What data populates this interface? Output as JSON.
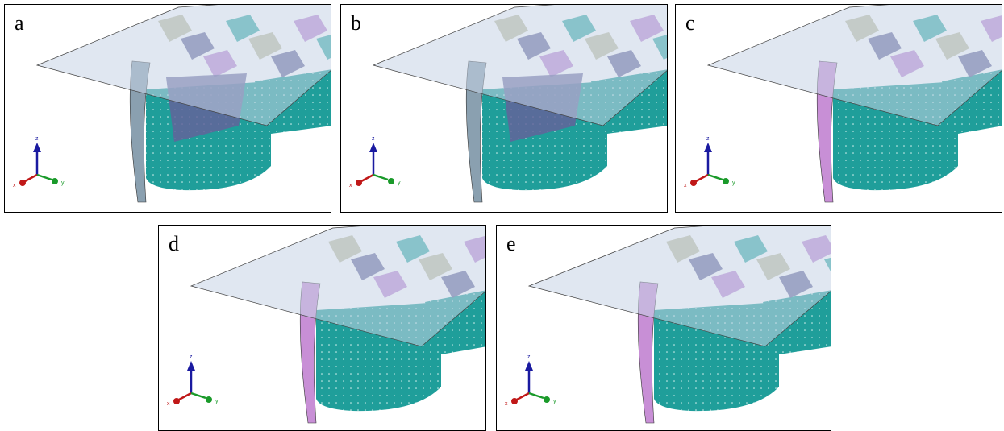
{
  "panels": [
    {
      "label": "a",
      "axes": {
        "x": "x",
        "y": "y",
        "z": "z"
      }
    },
    {
      "label": "b",
      "axes": {
        "x": "x",
        "y": "y",
        "z": "z"
      }
    },
    {
      "label": "c",
      "axes": {
        "x": "x",
        "y": "y",
        "z": "z"
      }
    },
    {
      "label": "d",
      "axes": {
        "x": "x",
        "y": "y",
        "z": "z"
      }
    },
    {
      "label": "e",
      "axes": {
        "x": "x",
        "y": "y",
        "z": "z"
      }
    }
  ]
}
